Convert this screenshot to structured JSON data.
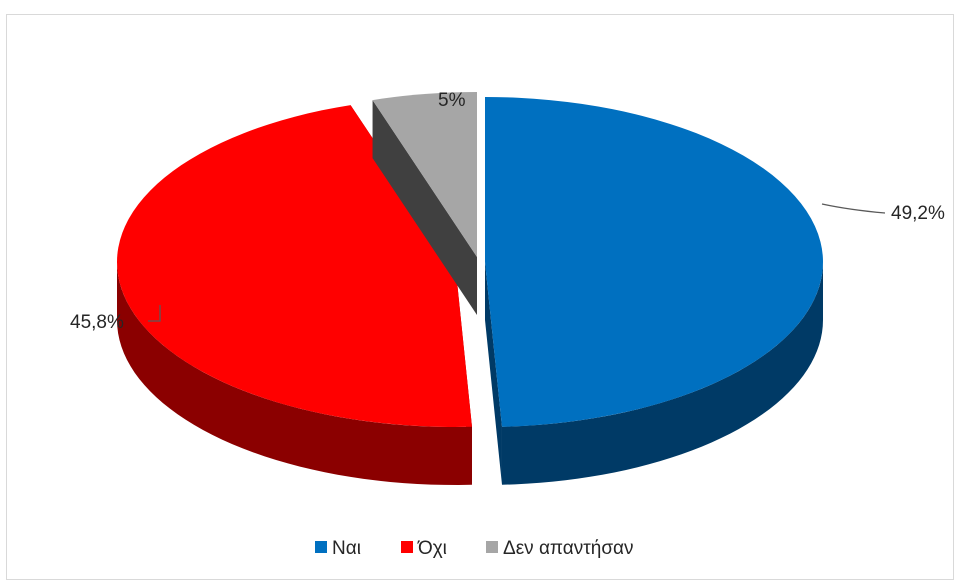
{
  "chart_data": {
    "type": "pie",
    "title": "",
    "style": "3d-exploded",
    "slices": [
      {
        "label": "Ναι",
        "value": 49.2,
        "display": "49,2%",
        "color": "#0070C0",
        "side_color": "#003A66"
      },
      {
        "label": "Όχι",
        "value": 45.8,
        "display": "45,8%",
        "color": "#FF0000",
        "side_color": "#8B0000"
      },
      {
        "label": "Δεν απαντήσαν",
        "value": 5,
        "display": "5%",
        "color": "#A6A6A6",
        "side_color": "#404040"
      }
    ],
    "legend": {
      "position": "bottom",
      "entries": [
        "Ναι",
        "Όχι",
        "Δεν απαντήσαν"
      ]
    }
  }
}
